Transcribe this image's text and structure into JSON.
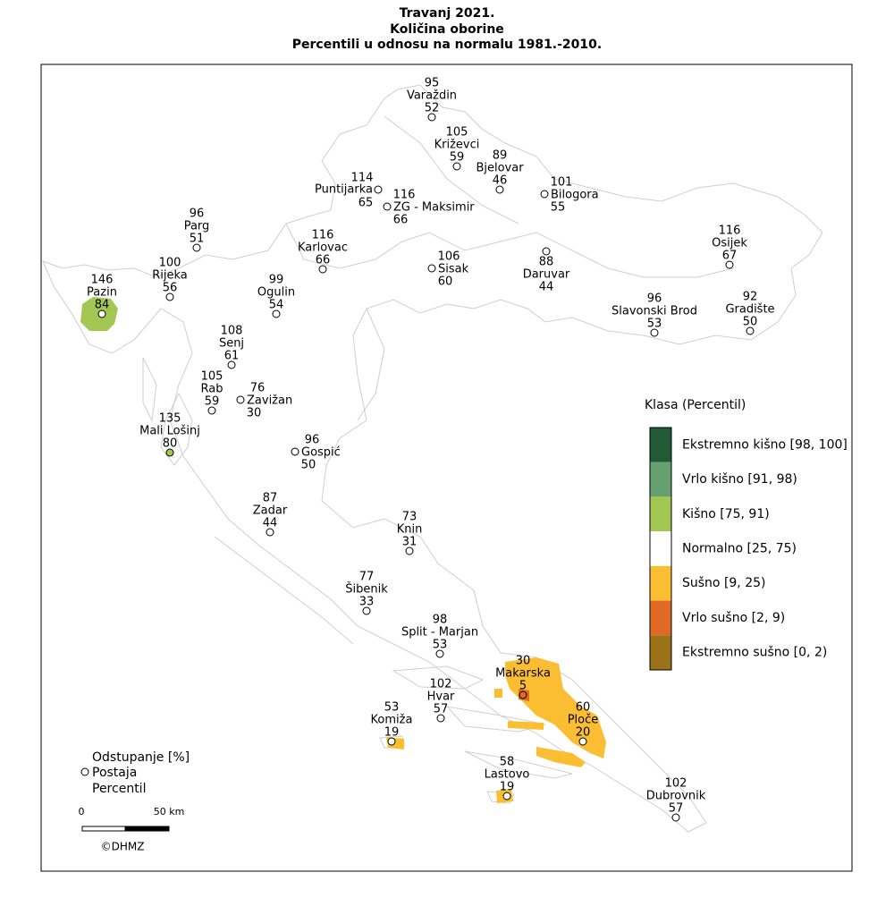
{
  "title": [
    "Travanj 2021.",
    "Količina oborine",
    "Percentili u odnosu na normalu 1981.-2010."
  ],
  "stations": [
    {
      "name": "Varaždin",
      "deviation": 95,
      "percentile": 52
    },
    {
      "name": "Križevci",
      "deviation": 105,
      "percentile": 59
    },
    {
      "name": "Bjelovar",
      "deviation": 89,
      "percentile": 46
    },
    {
      "name": "Bilogora",
      "deviation": 101,
      "percentile": 55
    },
    {
      "name": "Puntijarka",
      "deviation": 114,
      "percentile": 65
    },
    {
      "name": "ZG - Maksimir",
      "deviation": 116,
      "percentile": 66
    },
    {
      "name": "Karlovac",
      "deviation": 116,
      "percentile": 66
    },
    {
      "name": "Sisak",
      "deviation": 106,
      "percentile": 60
    },
    {
      "name": "Daruvar",
      "deviation": 88,
      "percentile": 44
    },
    {
      "name": "Osijek",
      "deviation": 116,
      "percentile": 67
    },
    {
      "name": "Slavonski Brod",
      "deviation": 96,
      "percentile": 53
    },
    {
      "name": "Gradište",
      "deviation": 92,
      "percentile": 50
    },
    {
      "name": "Parg",
      "deviation": 96,
      "percentile": 51
    },
    {
      "name": "Rijeka",
      "deviation": 100,
      "percentile": 56
    },
    {
      "name": "Pazin",
      "deviation": 146,
      "percentile": 84
    },
    {
      "name": "Ogulin",
      "deviation": 99,
      "percentile": 54
    },
    {
      "name": "Senj",
      "deviation": 108,
      "percentile": 61
    },
    {
      "name": "Rab",
      "deviation": 105,
      "percentile": 59
    },
    {
      "name": "Zavižan",
      "deviation": 76,
      "percentile": 30
    },
    {
      "name": "Mali Lošinj",
      "deviation": 135,
      "percentile": 80
    },
    {
      "name": "Gospić",
      "deviation": 96,
      "percentile": 50
    },
    {
      "name": "Zadar",
      "deviation": 87,
      "percentile": 44
    },
    {
      "name": "Knin",
      "deviation": 73,
      "percentile": 31
    },
    {
      "name": "Šibenik",
      "deviation": 77,
      "percentile": 33
    },
    {
      "name": "Split - Marjan",
      "deviation": 98,
      "percentile": 53
    },
    {
      "name": "Makarska",
      "deviation": 30,
      "percentile": 5
    },
    {
      "name": "Hvar",
      "deviation": 102,
      "percentile": 57
    },
    {
      "name": "Ploče",
      "deviation": 60,
      "percentile": 20
    },
    {
      "name": "Komiža",
      "deviation": 53,
      "percentile": 19
    },
    {
      "name": "Lastovo",
      "deviation": 58,
      "percentile": 19
    },
    {
      "name": "Dubrovnik",
      "deviation": 102,
      "percentile": 57
    }
  ],
  "legend": {
    "title": "Klasa (Percentil)",
    "classes": [
      {
        "label": "Ekstremno kišno [98, 100]",
        "color": "#225a38"
      },
      {
        "label": "Vrlo kišno [91, 98)",
        "color": "#65a070"
      },
      {
        "label": "Kišno [75, 91)",
        "color": "#a2c853"
      },
      {
        "label": "Normalno [25, 75)",
        "color": "#ffffff"
      },
      {
        "label": "Sušno [9, 25)",
        "color": "#fbbe33"
      },
      {
        "label": "Vrlo sušno [2, 9)",
        "color": "#e06a24"
      },
      {
        "label": "Ekstremno sušno [0, 2)",
        "color": "#9c7219"
      }
    ]
  },
  "key": [
    "Odstupanje [%]",
    "Postaja",
    "Percentil"
  ],
  "scale": [
    "0",
    "50 km"
  ],
  "credit": "©DHMZ"
}
